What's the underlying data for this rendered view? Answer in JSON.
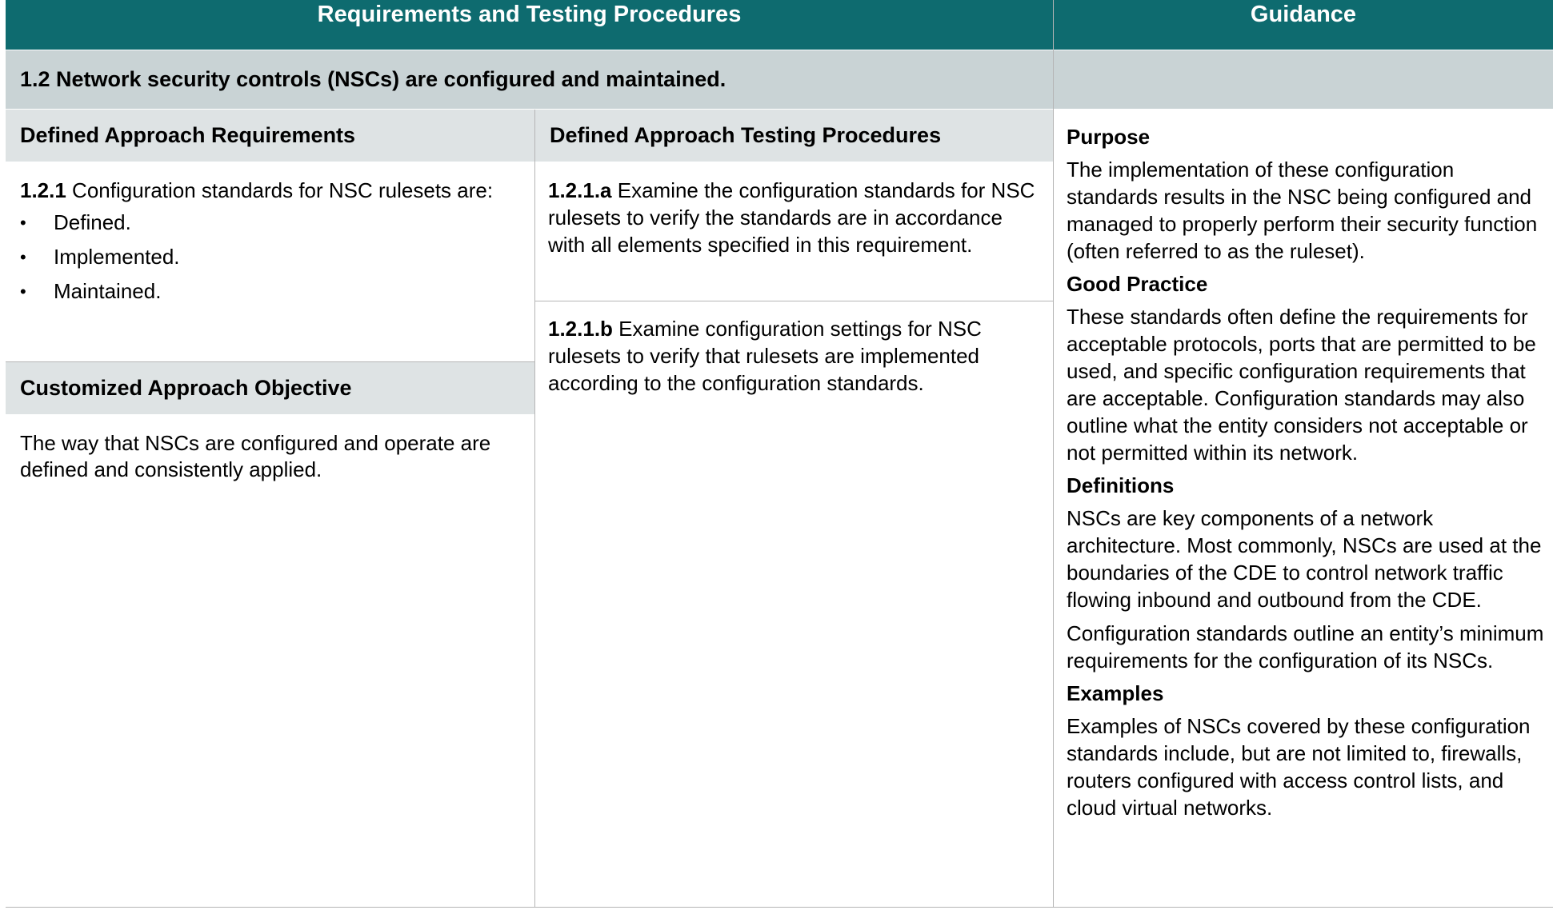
{
  "header": {
    "requirements_title": "Requirements and Testing Procedures",
    "guidance_title": "Guidance"
  },
  "section": {
    "title": "1.2 Network security controls (NSCs) are configured and maintained."
  },
  "defined_requirements": {
    "heading": "Defined Approach Requirements",
    "req_id": "1.2.1",
    "req_text": " Configuration standards for NSC rulesets are:",
    "bullets": [
      "Defined.",
      "Implemented.",
      "Maintained."
    ]
  },
  "customized": {
    "heading": "Customized Approach Objective",
    "text": "The way that NSCs are configured and operate are defined and consistently applied."
  },
  "testing": {
    "heading": "Defined Approach Testing Procedures",
    "proc_a_id": "1.2.1.a",
    "proc_a_text": " Examine the configuration standards for NSC rulesets to verify the standards are in accordance with all elements specified in this requirement.",
    "proc_b_id": "1.2.1.b",
    "proc_b_text": " Examine configuration settings for NSC rulesets to verify that rulesets are implemented according to the configuration standards."
  },
  "guidance": {
    "purpose_heading": "Purpose",
    "purpose_text": "The implementation of these configuration standards results in the NSC being configured and managed to properly perform their security function (often referred to as the ruleset).",
    "good_practice_heading": "Good Practice",
    "good_practice_text": "These standards often define the requirements for acceptable protocols, ports that are permitted to be used, and specific configuration requirements that are acceptable. Configuration standards may also outline what the entity considers not acceptable or not permitted within its network.",
    "definitions_heading": "Definitions",
    "definitions_text_1": "NSCs are key components of a network architecture. Most commonly, NSCs are used at the boundaries of the CDE to control network traffic flowing inbound and outbound from the CDE.",
    "definitions_text_2": "Configuration standards outline an entity’s minimum requirements for the configuration of its NSCs.",
    "examples_heading": "Examples",
    "examples_text": "Examples of NSCs covered by these configuration standards include, but are not limited to, firewalls, routers configured with access control lists, and cloud virtual networks."
  },
  "colors": {
    "header_bg": "#0e6b6f",
    "section_bg": "#c9d3d5",
    "subheader_bg": "#dee3e4"
  }
}
